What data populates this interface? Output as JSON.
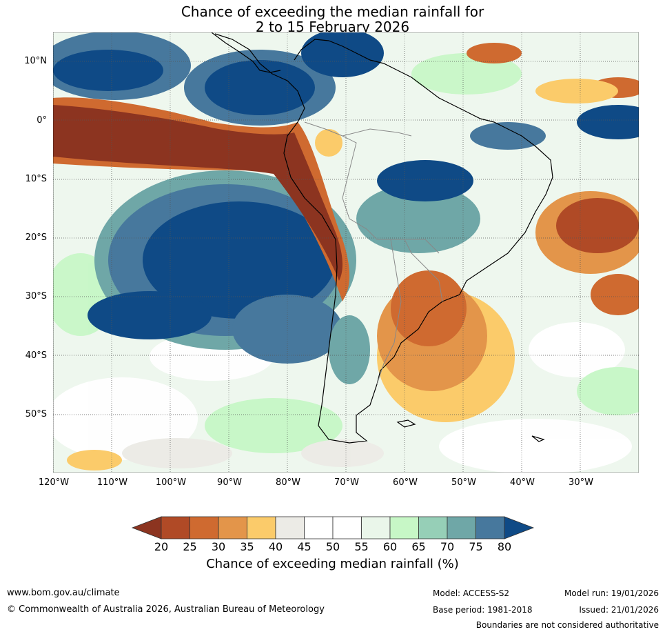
{
  "title_line1": "Chance of exceeding the median rainfall for",
  "title_line2": "2 to 15 February 2026",
  "lat_labels": [
    "10°N",
    "0°",
    "10°S",
    "20°S",
    "30°S",
    "40°S",
    "50°S"
  ],
  "lon_labels": [
    "120°W",
    "110°W",
    "100°W",
    "90°W",
    "80°W",
    "70°W",
    "60°W",
    "50°W",
    "40°W",
    "30°W"
  ],
  "colorbar": {
    "ticks": [
      "20",
      "25",
      "30",
      "35",
      "40",
      "45",
      "50",
      "55",
      "60",
      "65",
      "70",
      "75",
      "80"
    ],
    "colors": [
      "#8c3420",
      "#b04a26",
      "#cf6a30",
      "#e3954a",
      "#fbcb6a",
      "#ecebe6",
      "#ffffff",
      "#ffffff",
      "#eaf6ea",
      "#c7f7c6",
      "#96cfb7",
      "#6fa7a7",
      "#47789d",
      "#0f4a86"
    ],
    "label": "Chance of exceeding median rainfall (%)"
  },
  "footer": {
    "website": "www.bom.gov.au/climate",
    "copyright": "© Commonwealth of Australia 2026, Australian Bureau of Meteorology",
    "model": "Model: ACCESS-S2",
    "model_run": "Model run: 19/01/2026",
    "base_period": "Base period: 1981-2018",
    "issued": "Issued: 21/01/2026",
    "disclaimer": "Boundaries are not considered authoritative"
  }
}
